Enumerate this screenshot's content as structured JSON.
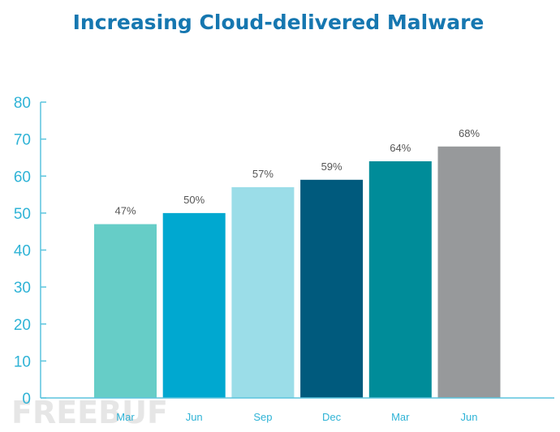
{
  "chart_data": {
    "type": "bar",
    "title": "Increasing Cloud-delivered Malware",
    "xlabel": "",
    "ylabel": "",
    "categories": [
      "Mar",
      "Jun",
      "Sep",
      "Dec",
      "Mar",
      "Jun"
    ],
    "values": [
      47,
      50,
      57,
      59,
      64,
      68
    ],
    "data_labels": [
      "47%",
      "50%",
      "57%",
      "59%",
      "64%",
      "68%"
    ],
    "bar_colors": [
      "#66cdc7",
      "#00a8d0",
      "#9bdde8",
      "#005a7d",
      "#008c99",
      "#97999b"
    ],
    "ylim": [
      0,
      80
    ],
    "yticks": [
      0,
      10,
      20,
      30,
      40,
      50,
      60,
      70,
      80
    ],
    "grid": false,
    "legend": "none",
    "colors": {
      "title": "#1677b0",
      "axis": "#5bc4de",
      "tick_text": "#2fb3d6",
      "category_text": "#2fb3d6"
    }
  },
  "watermark": {
    "text": "FREEBUF"
  }
}
